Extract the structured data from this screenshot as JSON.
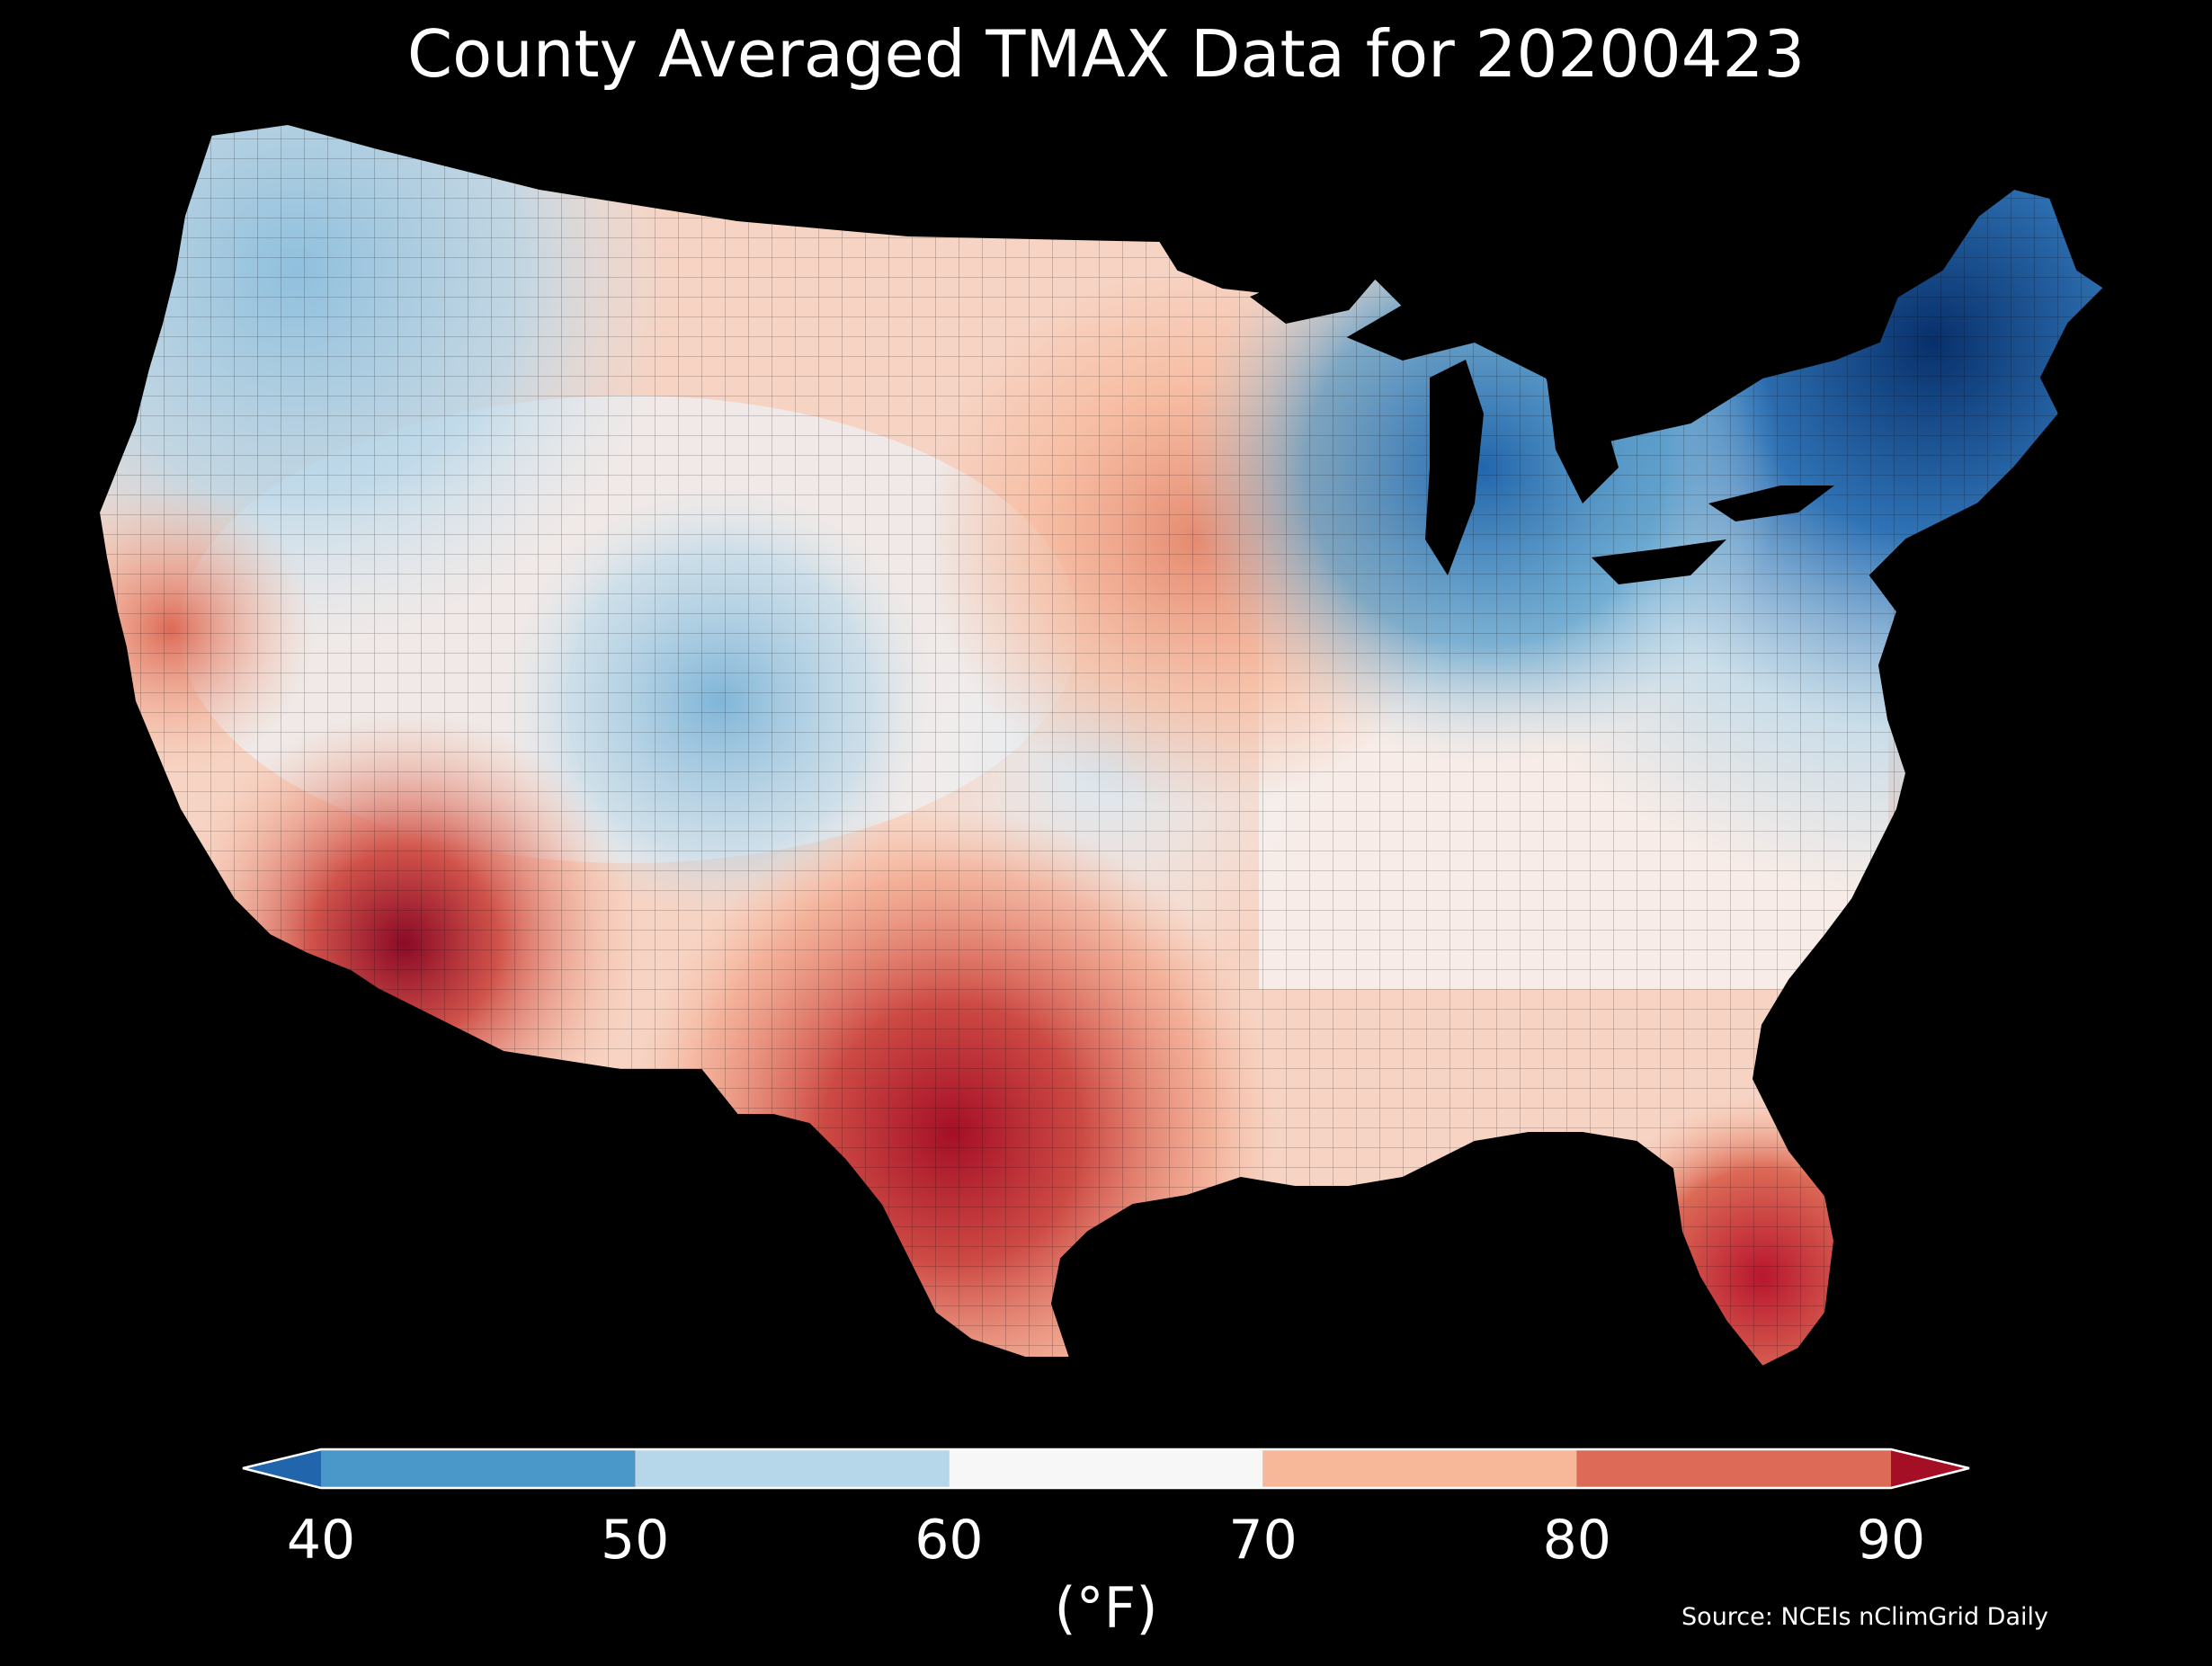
{
  "title": "County Averaged TMAX Data for 20200423",
  "colorbar": {
    "ticks": [
      "40",
      "50",
      "60",
      "70",
      "80",
      "90"
    ],
    "units": "(°F)",
    "range": [
      40,
      90
    ],
    "bins": [
      {
        "from": 40,
        "to": 50,
        "color": "#4a98c9"
      },
      {
        "from": 50,
        "to": 60,
        "color": "#b6d7ea"
      },
      {
        "from": 60,
        "to": 70,
        "color": "#f7f7f7"
      },
      {
        "from": 70,
        "to": 80,
        "color": "#f7b799"
      },
      {
        "from": 80,
        "to": 90,
        "color": "#dc6a56"
      }
    ],
    "under_color": "#2166ac",
    "over_color": "#a50f26"
  },
  "source": "Source: NCEIs nClimGrid Daily",
  "map_palette": {
    "very_cold": "#08306b",
    "cold": "#2f73b6",
    "cool": "#b6d7ea",
    "mild": "#f7f7f7",
    "warm": "#f7b799",
    "hot": "#dc6a56",
    "very_hot": "#a50f26",
    "background": "#000000"
  }
}
